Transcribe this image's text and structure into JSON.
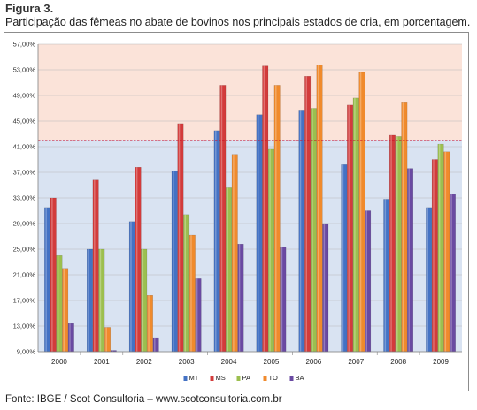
{
  "figure_label": "Figura 3.",
  "caption": "Participação das fêmeas no abate de bovinos nos principais estados de cria, em porcentagem.",
  "source": "Fonte: IBGE / Scot Consultoria – www.scotconsultoria.com.br",
  "chart_data": {
    "type": "bar",
    "categories": [
      "2000",
      "2001",
      "2002",
      "2003",
      "2004",
      "2005",
      "2006",
      "2007",
      "2008",
      "2009"
    ],
    "series": [
      {
        "name": "MT",
        "color": "#4472c4",
        "values": [
          31.5,
          25.0,
          29.3,
          37.2,
          43.5,
          46.0,
          46.6,
          38.2,
          32.8,
          31.5
        ]
      },
      {
        "name": "MS",
        "color": "#d33b3b",
        "values": [
          33.0,
          35.8,
          37.8,
          44.6,
          50.6,
          53.6,
          52.0,
          47.5,
          42.8,
          39.0
        ]
      },
      {
        "name": "PA",
        "color": "#9cbf4f",
        "values": [
          24.0,
          25.0,
          25.0,
          30.4,
          34.6,
          40.6,
          47.0,
          48.6,
          42.6,
          41.4
        ]
      },
      {
        "name": "TO",
        "color": "#f08a2c",
        "values": [
          22.0,
          12.8,
          17.8,
          27.2,
          39.8,
          50.6,
          53.8,
          52.6,
          48.0,
          40.2
        ]
      },
      {
        "name": "BA",
        "color": "#6a4aa2",
        "values": [
          13.4,
          9.2,
          11.2,
          20.4,
          25.8,
          25.3,
          29.0,
          31.0,
          37.6,
          33.6
        ]
      }
    ],
    "ylim": [
      9.0,
      57.0
    ],
    "y_ticks": [
      "9,00%",
      "13,00%",
      "17,00%",
      "21,00%",
      "25,00%",
      "29,00%",
      "33,00%",
      "37,00%",
      "41,00%",
      "45,00%",
      "49,00%",
      "53,00%",
      "57,00%"
    ],
    "reference_line": {
      "value": 42.0,
      "color": "#d0021b"
    },
    "grid": true,
    "legend_position": "bottom-center",
    "background_upper_color": "#fbe3d9",
    "background_lower_color": "#d9e3f2"
  }
}
